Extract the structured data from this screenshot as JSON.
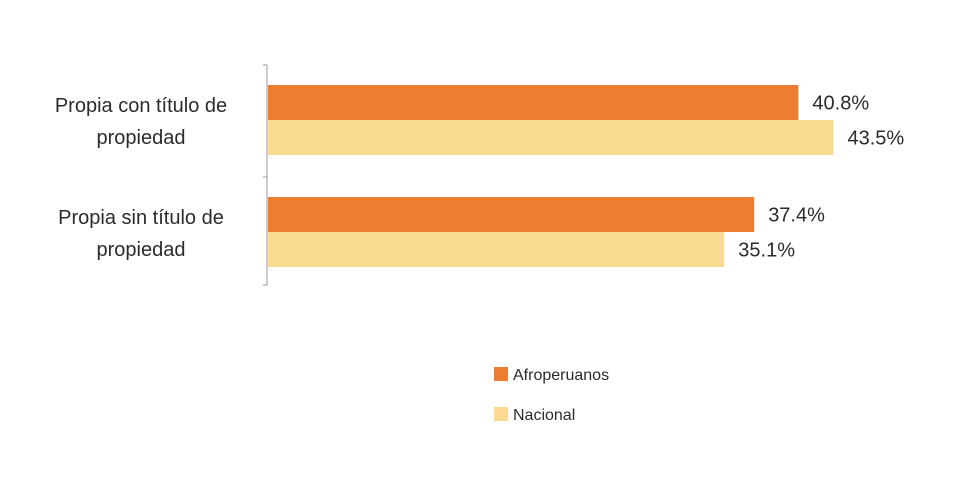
{
  "chart_data": {
    "type": "bar",
    "orientation": "horizontal",
    "categories": [
      [
        "Propia con título de",
        "propiedad"
      ],
      [
        "Propia sin título de",
        "propiedad"
      ]
    ],
    "series": [
      {
        "name": "Afroperuanos",
        "values": [
          40.8,
          37.4
        ],
        "color": "#ED7D31"
      },
      {
        "name": "Nacional",
        "values": [
          43.5,
          35.1
        ],
        "color": "#FAD990"
      }
    ],
    "value_labels": [
      [
        "40.8%",
        "37.4%"
      ],
      [
        "43.5%",
        "35.1%"
      ]
    ],
    "value_suffix": "%",
    "xlim": [
      0,
      50
    ],
    "grid": false,
    "legend_position": "bottom"
  }
}
